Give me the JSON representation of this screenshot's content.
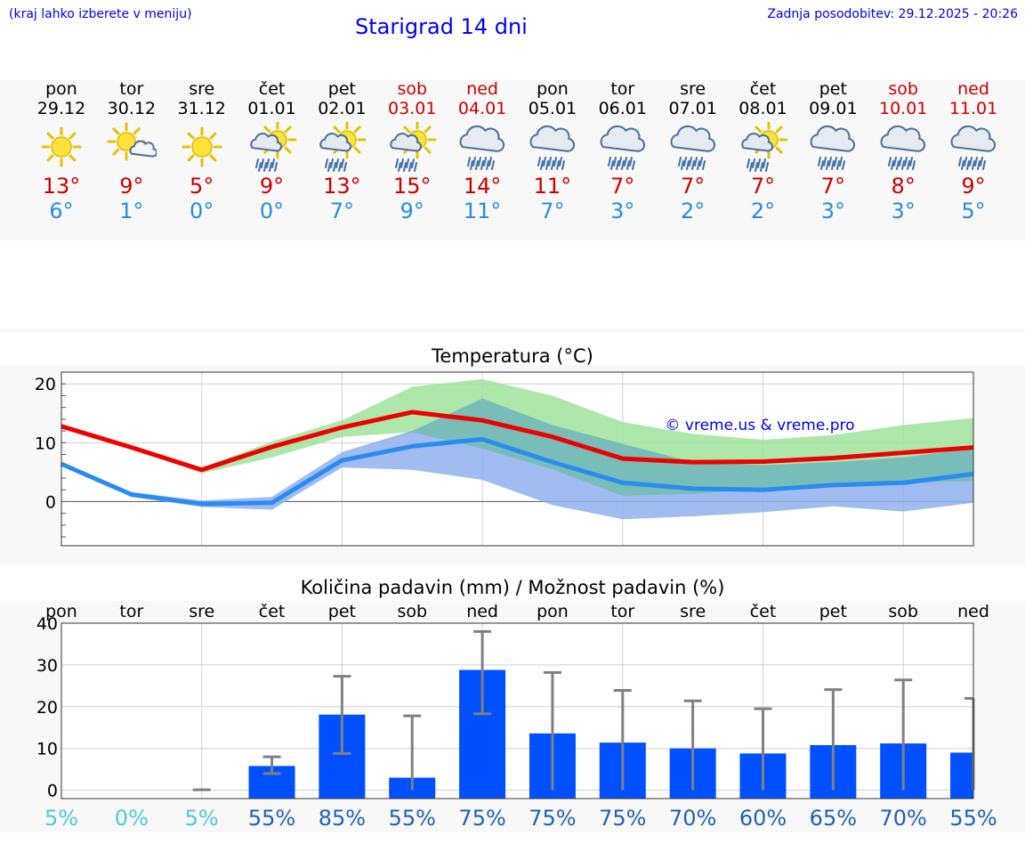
{
  "header": {
    "hint": "(kraj lahko izberete v meniju)",
    "title": "Starigrad 14 dni",
    "updated": "Zadnja posodobitev: 29.12.2025 - 20:26"
  },
  "days": [
    {
      "name": "pon",
      "date": "29.12",
      "icon": "sun-icon",
      "max": "13°",
      "min": "6°",
      "weekend": false
    },
    {
      "name": "tor",
      "date": "30.12",
      "icon": "sun-cloud-icon",
      "max": "9°",
      "min": "1°",
      "weekend": false
    },
    {
      "name": "sre",
      "date": "31.12",
      "icon": "sun-icon",
      "max": "5°",
      "min": "0°",
      "weekend": false
    },
    {
      "name": "čet",
      "date": "01.01",
      "icon": "sun-rain-icon",
      "max": "9°",
      "min": "0°",
      "weekend": false
    },
    {
      "name": "pet",
      "date": "02.01",
      "icon": "sun-rain-icon",
      "max": "13°",
      "min": "7°",
      "weekend": false
    },
    {
      "name": "sob",
      "date": "03.01",
      "icon": "sun-rain-icon",
      "max": "15°",
      "min": "9°",
      "weekend": true
    },
    {
      "name": "ned",
      "date": "04.01",
      "icon": "cloud-rain-icon",
      "max": "14°",
      "min": "11°",
      "weekend": true
    },
    {
      "name": "pon",
      "date": "05.01",
      "icon": "cloud-rain-icon",
      "max": "11°",
      "min": "7°",
      "weekend": false
    },
    {
      "name": "tor",
      "date": "06.01",
      "icon": "cloud-rain-icon",
      "max": "7°",
      "min": "3°",
      "weekend": false
    },
    {
      "name": "sre",
      "date": "07.01",
      "icon": "cloud-rain-icon",
      "max": "7°",
      "min": "2°",
      "weekend": false
    },
    {
      "name": "čet",
      "date": "08.01",
      "icon": "sun-rain-icon",
      "max": "7°",
      "min": "2°",
      "weekend": false
    },
    {
      "name": "pet",
      "date": "09.01",
      "icon": "cloud-rain-icon",
      "max": "7°",
      "min": "3°",
      "weekend": false
    },
    {
      "name": "sob",
      "date": "10.01",
      "icon": "cloud-rain-icon",
      "max": "8°",
      "min": "3°",
      "weekend": true
    },
    {
      "name": "ned",
      "date": "11.01",
      "icon": "cloud-rain-icon",
      "max": "9°",
      "min": "5°",
      "weekend": true
    }
  ],
  "colors": {
    "max": "#cc0000",
    "min": "#2a8ce0",
    "maxLine": "#ee0000",
    "minLine": "#2a8cf0",
    "maxBand": "#9fe39a",
    "minBand": "#8fb0ee",
    "bar": "#0050ff",
    "err": "#808080",
    "probLow": "#4fc8e0",
    "probHigh": "#1f62b4"
  },
  "chart_data": [
    {
      "type": "line",
      "title": "Temperatura (°C)",
      "watermark": "© vreme.us & vreme.pro",
      "ylim": [
        -7.5,
        22
      ],
      "yticks": [
        0,
        10,
        20
      ],
      "series": [
        {
          "name": "max",
          "values": [
            12.8,
            9.2,
            5.4,
            9.3,
            12.6,
            15.2,
            13.8,
            11.0,
            7.3,
            6.7,
            6.8,
            7.4,
            8.3,
            9.2
          ],
          "band_low": [
            12.8,
            9.0,
            4.8,
            7.5,
            11.0,
            11.8,
            9.0,
            5.5,
            1.0,
            1.3,
            2.2,
            2.7,
            3.2,
            3.5
          ],
          "band_high": [
            12.8,
            9.4,
            5.8,
            10.2,
            13.8,
            19.5,
            20.8,
            18.0,
            13.5,
            11.5,
            10.5,
            11.3,
            13.0,
            14.2
          ]
        },
        {
          "name": "min",
          "values": [
            6.4,
            1.2,
            -0.4,
            -0.2,
            7.0,
            9.4,
            10.6,
            6.7,
            3.2,
            2.2,
            2.0,
            2.8,
            3.2,
            4.7
          ],
          "band_low": [
            6.4,
            0.8,
            -0.9,
            -1.4,
            5.8,
            5.4,
            3.7,
            -0.6,
            -3.0,
            -2.5,
            -1.8,
            -0.8,
            -1.7,
            -0.2
          ],
          "band_high": [
            6.4,
            1.6,
            0.2,
            0.8,
            8.4,
            12.0,
            17.5,
            13.0,
            9.8,
            6.7,
            6.2,
            6.7,
            7.5,
            9.0
          ]
        }
      ]
    },
    {
      "type": "bar",
      "title": "Količina padavin (mm) / Možnost padavin (%)",
      "categories": [
        "pon",
        "tor",
        "sre",
        "čet",
        "pet",
        "sob",
        "ned",
        "pon",
        "tor",
        "sre",
        "čet",
        "pet",
        "sob",
        "ned"
      ],
      "values": [
        0,
        0,
        0,
        5.8,
        18.1,
        3.0,
        28.8,
        13.6,
        11.4,
        10.0,
        8.8,
        10.8,
        11.2,
        9.0
      ],
      "err_low": [
        0,
        0,
        0,
        4.0,
        8.8,
        0,
        18.3,
        0,
        0,
        0,
        0,
        0,
        0,
        0
      ],
      "err_high": [
        0,
        0,
        0.1,
        8.0,
        27.3,
        17.8,
        38.0,
        28.2,
        23.9,
        21.4,
        19.5,
        24.1,
        26.4,
        22.0
      ],
      "probability": [
        "5%",
        "0%",
        "5%",
        "55%",
        "85%",
        "55%",
        "75%",
        "75%",
        "75%",
        "70%",
        "60%",
        "65%",
        "70%",
        "55%"
      ],
      "ylim": [
        -2,
        40
      ],
      "yticks": [
        0,
        10,
        20,
        30,
        40
      ]
    }
  ]
}
